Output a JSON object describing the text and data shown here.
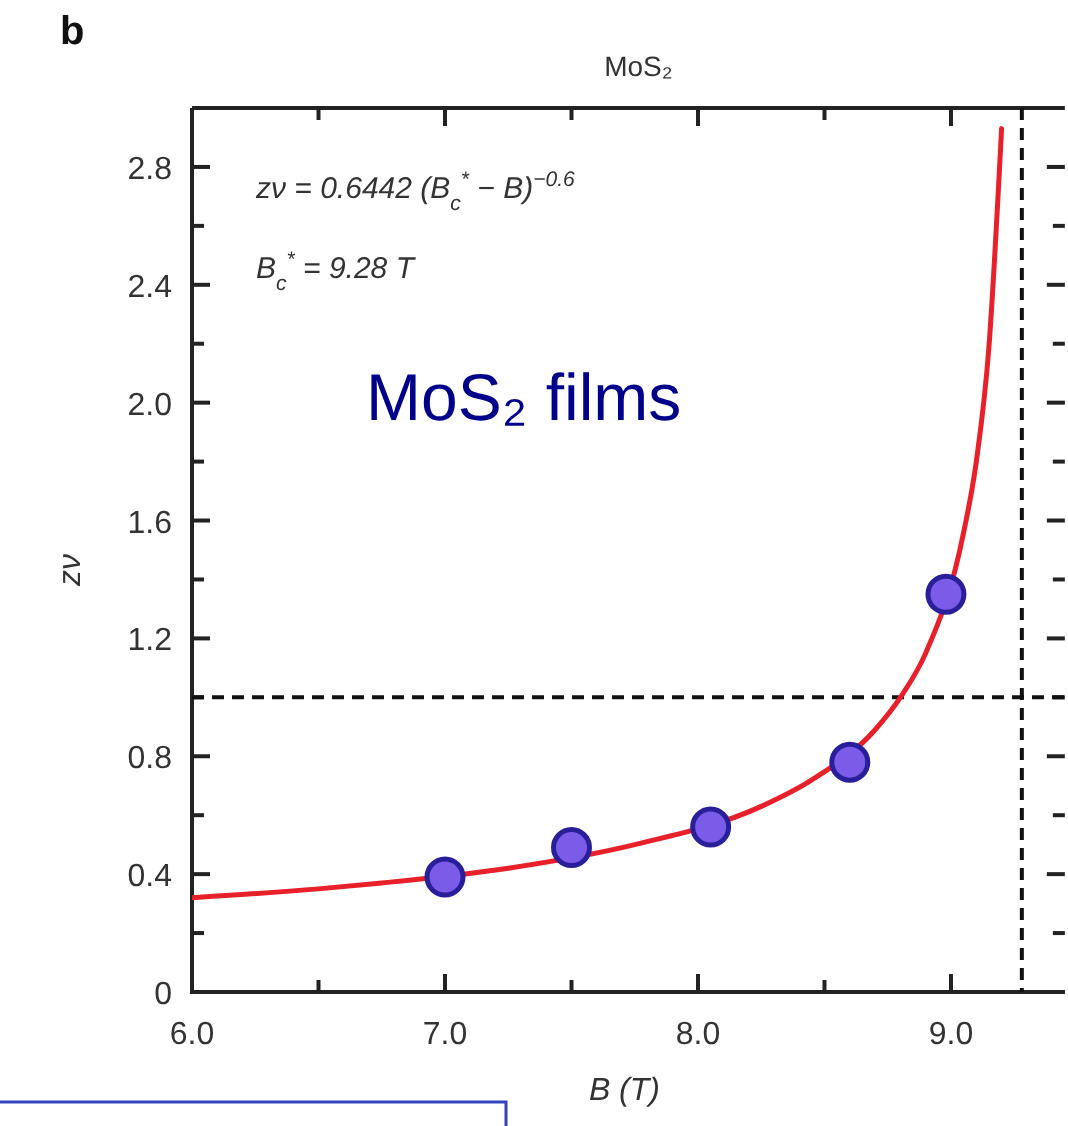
{
  "chart_data": {
    "type": "scatter",
    "title": "MoS₂",
    "xlabel": "B (T)",
    "ylabel": "zν",
    "xlim": [
      6.0,
      9.45
    ],
    "ylim": [
      0,
      3.0
    ],
    "xticks": [
      {
        "value": 6,
        "label": "6.0"
      },
      {
        "value": 6.5,
        "label": null
      },
      {
        "value": 7,
        "label": "7.0"
      },
      {
        "value": 7.5,
        "label": null
      },
      {
        "value": 8,
        "label": "8.0"
      },
      {
        "value": 8.5,
        "label": null
      },
      {
        "value": 9,
        "label": "9.0"
      }
    ],
    "yticks": [
      0,
      {
        "value": 0.2,
        "label": null
      },
      0.4,
      {
        "value": 0.6,
        "label": null
      },
      0.8,
      {
        "value": 1.0,
        "label": null
      },
      1.2,
      {
        "value": 1.4,
        "label": null
      },
      1.6,
      {
        "value": 1.8,
        "label": null
      },
      {
        "value": 2.0,
        "label": "2.0"
      },
      {
        "value": 2.2,
        "label": null
      },
      2.4,
      {
        "value": 2.6,
        "label": null
      },
      2.8
    ],
    "grid": false,
    "series": [
      {
        "type": "line",
        "color": "#e8202a",
        "x": [
          6.0,
          6.5,
          6.75,
          7.25,
          7.75,
          8.25,
          8.45,
          8.7,
          8.8,
          8.9,
          9.05,
          9.1,
          9.15,
          9.2
        ],
        "values": [
          0.32,
          0.35,
          0.37,
          0.42,
          0.5,
          0.63,
          0.72,
          0.89,
          1.0,
          1.15,
          1.56,
          1.8,
          2.19,
          2.93
        ]
      },
      {
        "marker": "circle",
        "color": "#7a5ce8",
        "x": [
          7.0,
          7.5,
          8.05,
          8.6,
          8.98
        ],
        "values": [
          0.39,
          0.49,
          0.56,
          0.78,
          1.35
        ]
      }
    ],
    "ref_lines": [
      {
        "axis": "y",
        "value": 1.0,
        "color": "#111111",
        "line_style": "dashed"
      },
      {
        "axis": "x",
        "value": 9.28,
        "color": "#111111",
        "line_style": "dashed"
      }
    ],
    "annotations": [
      "b",
      "zν = 0.6442 (B$_{c}$$^{*}$ − B)$^{−0.6}$",
      "B$_{c}$$^{*}$ = 9.28 T",
      "MoS₂ films"
    ]
  }
}
